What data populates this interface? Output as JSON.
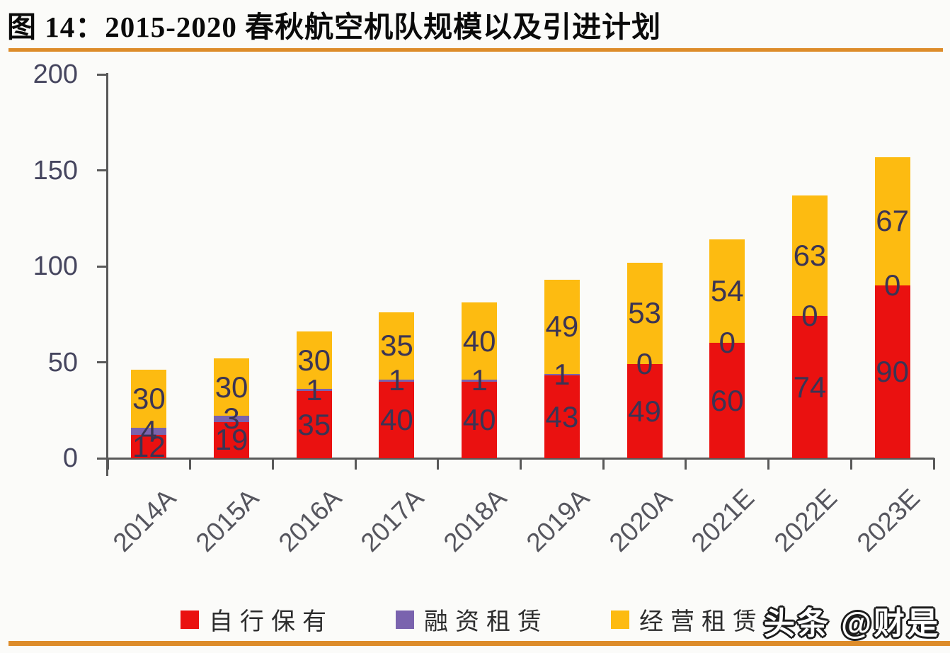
{
  "page": {
    "title": "图 14：2015-2020 春秋航空机队规模以及引进计划",
    "watermark": "头条 @财是",
    "accent_rule_color": "#dd8c2a",
    "background_color": "#fbfbf9",
    "axis_color": "#595959",
    "data_label_color": "#3b3454"
  },
  "chart_data": {
    "type": "bar",
    "stacked": true,
    "title": "图 14：2015-2020 春秋航空机队规模以及引进计划",
    "categories": [
      "2014A",
      "2015A",
      "2016A",
      "2017A",
      "2018A",
      "2019A",
      "2020A",
      "2021E",
      "2022E",
      "2023E"
    ],
    "series": [
      {
        "name": "自行保有",
        "color": "#ea1110",
        "values": [
          12,
          19,
          35,
          40,
          40,
          43,
          49,
          60,
          74,
          90
        ]
      },
      {
        "name": "融资租赁",
        "color": "#7a63ae",
        "values": [
          4,
          3,
          1,
          1,
          1,
          1,
          0,
          0,
          0,
          0
        ]
      },
      {
        "name": "经营租赁",
        "color": "#fdbb11",
        "values": [
          30,
          30,
          30,
          35,
          40,
          49,
          53,
          54,
          63,
          67
        ]
      }
    ],
    "totals": [
      46,
      52,
      66,
      76,
      81,
      93,
      102,
      114,
      137,
      157
    ],
    "xlabel": "",
    "ylabel": "",
    "ylim": [
      0,
      200
    ],
    "yticks": [
      0,
      50,
      100,
      150,
      200
    ],
    "grid": false,
    "data_labels": true,
    "legend_position": "bottom"
  }
}
